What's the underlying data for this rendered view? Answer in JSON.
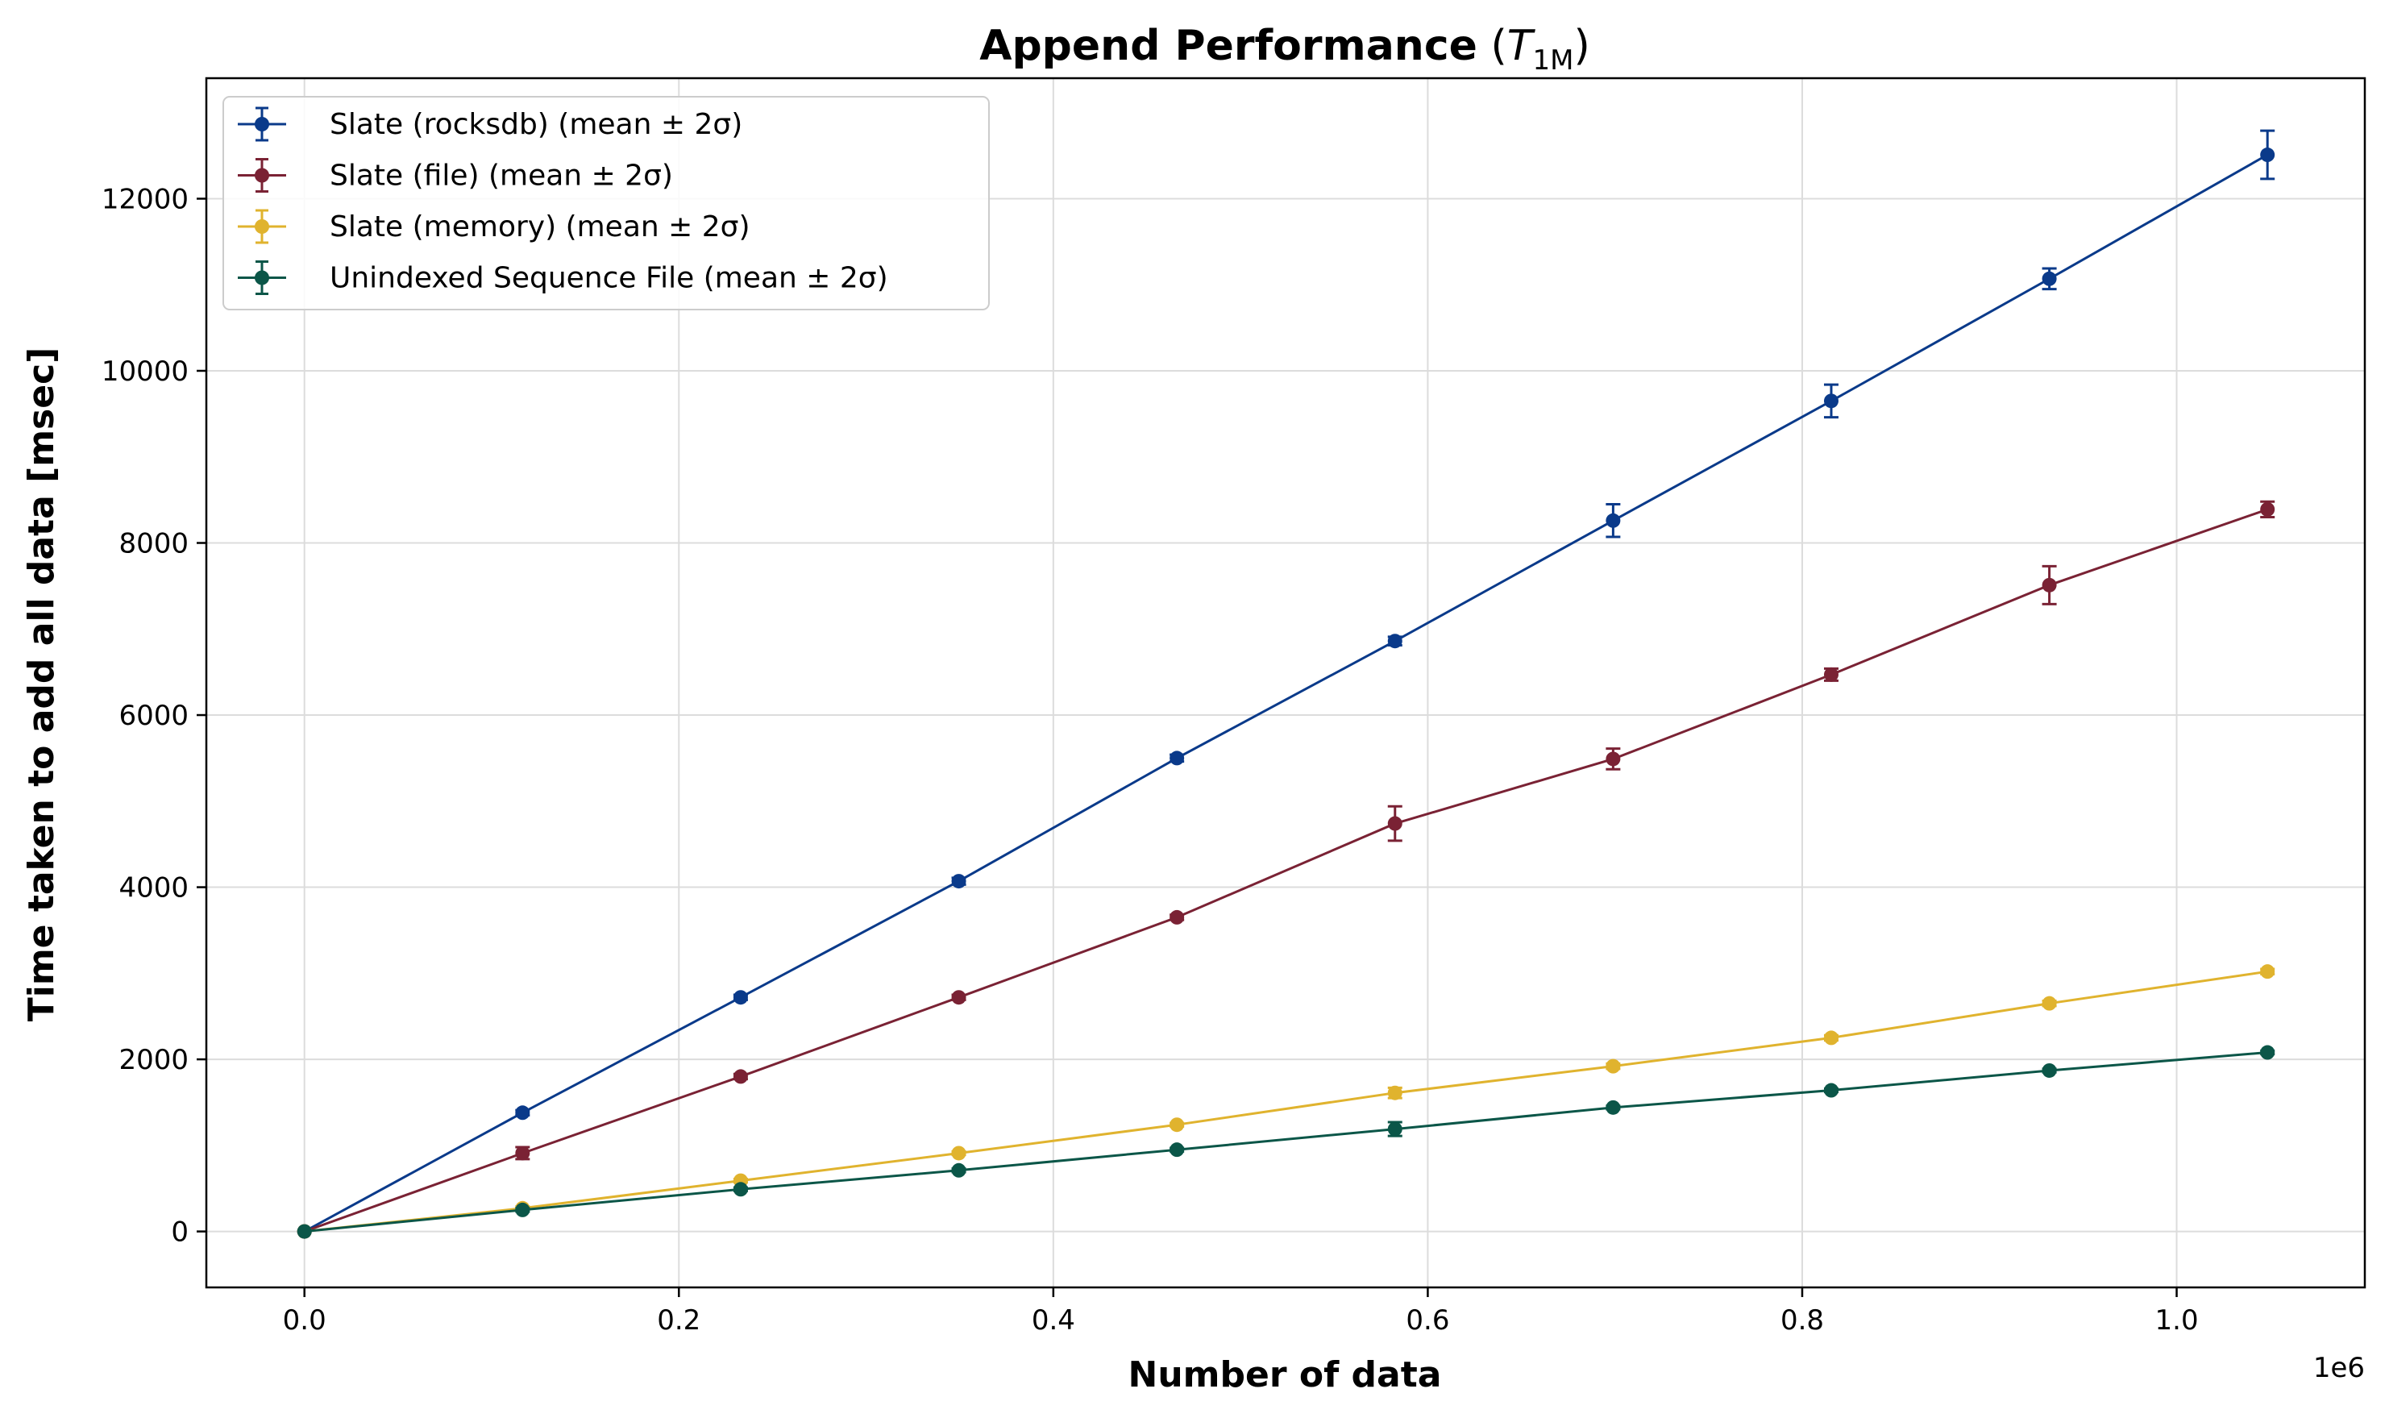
{
  "chart_data": {
    "type": "line",
    "title": "Append Performance",
    "title_math": {
      "base": "T",
      "subscript": "1M"
    },
    "xlabel": "Number of data",
    "ylabel": "Time taken to add all data [msec]",
    "x_offset_label": "1e6",
    "xlim": [
      -0.0524,
      1.1005
    ],
    "ylim": [
      -650,
      13400
    ],
    "x_ticks": [
      0.0,
      0.2,
      0.4,
      0.6,
      0.8,
      1.0
    ],
    "x_tick_labels": [
      "0.0",
      "0.2",
      "0.4",
      "0.6",
      "0.8",
      "1.0"
    ],
    "y_ticks": [
      0,
      2000,
      4000,
      6000,
      8000,
      10000,
      12000
    ],
    "y_tick_labels": [
      "0",
      "2000",
      "4000",
      "6000",
      "8000",
      "10000",
      "12000"
    ],
    "grid": true,
    "legend_position": "top-left",
    "x": [
      0.0,
      0.1165,
      0.233,
      0.3495,
      0.466,
      0.5825,
      0.699,
      0.8155,
      0.932,
      1.0485
    ],
    "series": [
      {
        "name": "Slate (rocksdb) (mean ± 2σ)",
        "color": "#0a3a8a",
        "values": [
          0,
          1380,
          2720,
          4070,
          5500,
          6860,
          8260,
          9650,
          11070,
          12510
        ],
        "errors": [
          0,
          30,
          30,
          40,
          40,
          50,
          190,
          190,
          120,
          280
        ]
      },
      {
        "name": "Slate (file) (mean ± 2σ)",
        "color": "#7a2234",
        "values": [
          0,
          910,
          1800,
          2720,
          3650,
          4740,
          5490,
          6470,
          7510,
          8390
        ],
        "errors": [
          0,
          70,
          30,
          30,
          30,
          200,
          120,
          70,
          220,
          90
        ]
      },
      {
        "name": "Slate (memory) (mean ± 2σ)",
        "color": "#e0b32e",
        "values": [
          0,
          270,
          590,
          910,
          1240,
          1610,
          1920,
          2250,
          2650,
          3020
        ],
        "errors": [
          0,
          20,
          20,
          20,
          20,
          60,
          30,
          30,
          30,
          30
        ]
      },
      {
        "name": "Unindexed Sequence File (mean ± 2σ)",
        "color": "#0b5648",
        "values": [
          0,
          250,
          490,
          710,
          950,
          1190,
          1440,
          1640,
          1870,
          2080
        ],
        "errors": [
          0,
          20,
          20,
          20,
          20,
          80,
          20,
          20,
          20,
          20
        ]
      }
    ]
  }
}
